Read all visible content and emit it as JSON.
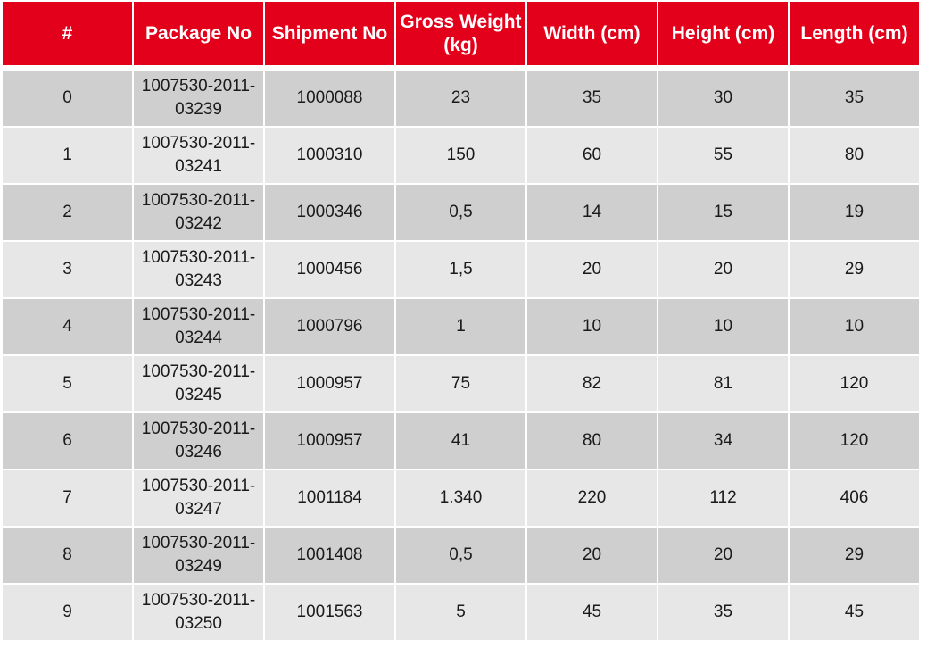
{
  "table": {
    "headers": [
      "#",
      "Package No",
      "Shipment No",
      "Gross Weight (kg)",
      "Width (cm)",
      "Height (cm)",
      "Length (cm)"
    ],
    "rows": [
      [
        "0",
        "1007530-2011-03239",
        "1000088",
        "23",
        "35",
        "30",
        "35"
      ],
      [
        "1",
        "1007530-2011-03241",
        "1000310",
        "150",
        "60",
        "55",
        "80"
      ],
      [
        "2",
        "1007530-2011-03242",
        "1000346",
        "0,5",
        "14",
        "15",
        "19"
      ],
      [
        "3",
        "1007530-2011-03243",
        "1000456",
        "1,5",
        "20",
        "20",
        "29"
      ],
      [
        "4",
        "1007530-2011-03244",
        "1000796",
        "1",
        "10",
        "10",
        "10"
      ],
      [
        "5",
        "1007530-2011-03245",
        "1000957",
        "75",
        "82",
        "81",
        "120"
      ],
      [
        "6",
        "1007530-2011-03246",
        "1000957",
        "41",
        "80",
        "34",
        "120"
      ],
      [
        "7",
        "1007530-2011-03247",
        "1001184",
        "1.340",
        "220",
        "112",
        "406"
      ],
      [
        "8",
        "1007530-2011-03249",
        "1001408",
        "0,5",
        "20",
        "20",
        "29"
      ],
      [
        "9",
        "1007530-2011-03250",
        "1001563",
        "5",
        "45",
        "35",
        "45"
      ]
    ]
  },
  "colors": {
    "header_bg": "#e2001a",
    "header_text": "#ffffff",
    "row_dark": "#cfcfcf",
    "row_light": "#e7e7e7"
  }
}
